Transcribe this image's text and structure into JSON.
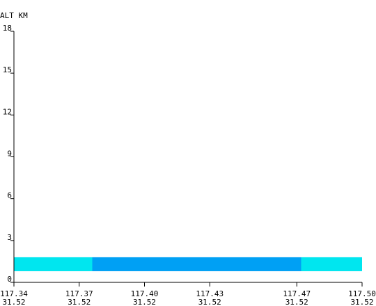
{
  "chart_data": {
    "type": "bar",
    "ylabel": "ALT KM",
    "ylim": [
      0,
      18
    ],
    "yticks": [
      {
        "value": 0,
        "label": "0"
      },
      {
        "value": 3,
        "label": "3"
      },
      {
        "value": 6,
        "label": "6"
      },
      {
        "value": 9,
        "label": "9"
      },
      {
        "value": 12,
        "label": "12"
      },
      {
        "value": 15,
        "label": "15"
      },
      {
        "value": 18,
        "label": "18"
      }
    ],
    "xlim": [
      117.34,
      117.5
    ],
    "xticks": [
      {
        "value": 117.34,
        "lon": "117.34",
        "lat": "31.52"
      },
      {
        "value": 117.37,
        "lon": "117.37",
        "lat": "31.52"
      },
      {
        "value": 117.4,
        "lon": "117.40",
        "lat": "31.52"
      },
      {
        "value": 117.43,
        "lon": "117.43",
        "lat": "31.52"
      },
      {
        "value": 117.47,
        "lon": "117.47",
        "lat": "31.52"
      },
      {
        "value": 117.5,
        "lon": "117.50",
        "lat": "31.52"
      }
    ],
    "segments": [
      {
        "x_start": 117.34,
        "x_end": 117.376,
        "y_bottom": 0.8,
        "y_top": 1.8,
        "color": "#00e6ef"
      },
      {
        "x_start": 117.376,
        "x_end": 117.472,
        "y_bottom": 0.8,
        "y_top": 1.8,
        "color": "#00a0f4"
      },
      {
        "x_start": 117.472,
        "x_end": 117.5,
        "y_bottom": 0.8,
        "y_top": 1.8,
        "color": "#00e6ef"
      }
    ],
    "grid": false
  }
}
